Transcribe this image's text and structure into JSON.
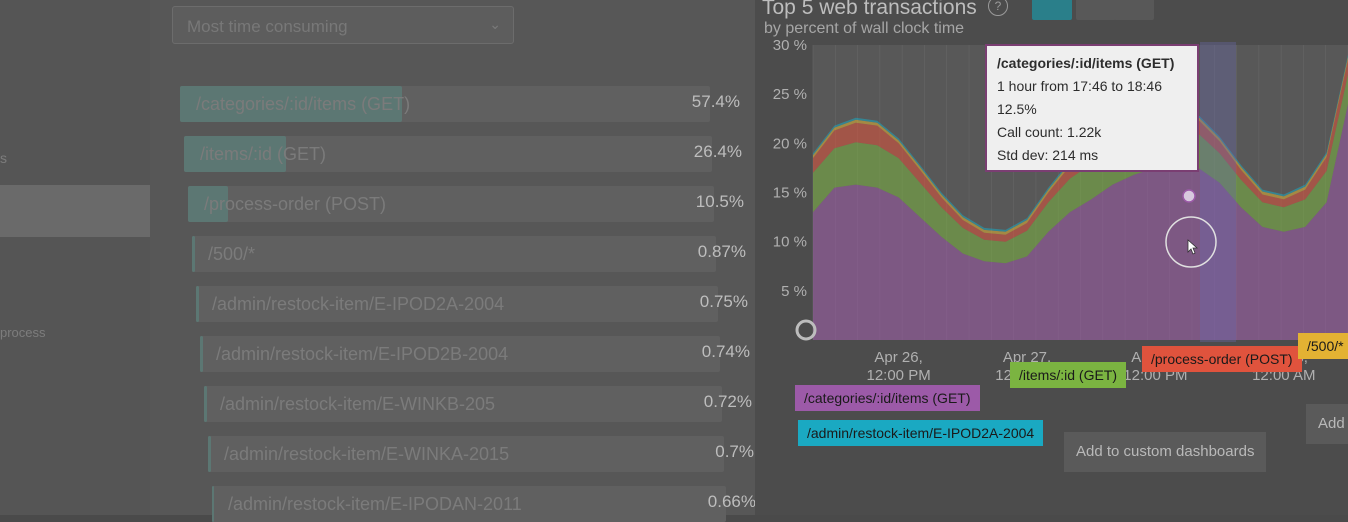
{
  "left_panel": {
    "sort_dropdown": {
      "value": "Most time consuming"
    },
    "transactions": [
      {
        "name": "/categories/:id/items (GET)",
        "percent": "57.4%",
        "fraction": 0.574
      },
      {
        "name": "/items/:id (GET)",
        "percent": "26.4%",
        "fraction": 0.264
      },
      {
        "name": "/process-order (POST)",
        "percent": "10.5%",
        "fraction": 0.105
      },
      {
        "name": "/500/*",
        "percent": "0.87%",
        "fraction": 0.0087
      },
      {
        "name": "/admin/restock-item/E-IPOD2A-2004",
        "percent": "0.75%",
        "fraction": 0.0075
      },
      {
        "name": "/admin/restock-item/E-IPOD2B-2004",
        "percent": "0.74%",
        "fraction": 0.0074
      },
      {
        "name": "/admin/restock-item/E-WINKB-205",
        "percent": "0.72%",
        "fraction": 0.0072
      },
      {
        "name": "/admin/restock-item/E-WINKA-2015",
        "percent": "0.7%",
        "fraction": 0.007
      },
      {
        "name": "/admin/restock-item/E-IPODAN-2011",
        "percent": "0.66%",
        "fraction": 0.0066
      }
    ]
  },
  "chart": {
    "title": "Top 5 web transactions",
    "subtitle": "by percent of wall clock time",
    "help_icon": "?",
    "tooltip": {
      "title": "/categories/:id/items (GET)",
      "time_range": "1 hour from 17:46 to 18:46",
      "value": "12.5%",
      "call_count": "Call count: 1.22k",
      "std_dev": "Std dev: 214 ms"
    },
    "legend": [
      {
        "name": "/categories/:id/items (GET)",
        "color": "#9c5aa8"
      },
      {
        "name": "/items/:id (GET)",
        "color": "#7bb441"
      },
      {
        "name": "/process-order (POST)",
        "color": "#e0533d"
      },
      {
        "name": "/500/*",
        "color": "#e3b233"
      },
      {
        "name": "/admin/restock-item/E-IPOD2A-2004",
        "color": "#1aa9c2"
      }
    ],
    "add_to_dashboards_label": "Add to custom dashboards",
    "add_to_label": "Add to"
  },
  "chart_data": {
    "type": "area",
    "title": "Top 5 web transactions",
    "subtitle": "by percent of wall clock time",
    "x_ticks": [
      "Apr 26,\n12:00 PM",
      "Apr 27,\n12:00 AM",
      "Apr 27,\n12:00 PM",
      "Apr 28,\n12:00 AM"
    ],
    "y_ticks": [
      "5 %",
      "10 %",
      "15 %",
      "20 %",
      "25 %",
      "30 %"
    ],
    "ylim": [
      0,
      30
    ],
    "x": [
      0,
      2,
      4,
      6,
      8,
      10,
      12,
      14,
      16,
      18,
      20,
      22,
      24,
      26,
      28,
      30,
      32,
      34,
      36,
      38,
      40,
      42,
      44,
      46,
      48,
      50
    ],
    "series": [
      {
        "name": "/categories/:id/items (GET)",
        "color": "#9c5aa8",
        "values": [
          13,
          15.5,
          15.8,
          15.5,
          14.5,
          12.5,
          10.5,
          8.8,
          8,
          7.8,
          8.5,
          11,
          13,
          14.3,
          15.8,
          16.8,
          17.5,
          18,
          17.5,
          16,
          13.5,
          11.5,
          11,
          11.5,
          14,
          24
        ]
      },
      {
        "name": "/items/:id (GET)",
        "color": "#7bb441",
        "values": [
          4,
          4,
          4.3,
          4.3,
          4,
          3.5,
          3,
          2.6,
          2.2,
          2.2,
          2.6,
          3,
          3.4,
          3.6,
          3.6,
          3.6,
          3.8,
          3.8,
          3.5,
          3,
          2.8,
          2.5,
          2.5,
          2.8,
          3.2,
          3
        ]
      },
      {
        "name": "/process-order (POST)",
        "color": "#e0533d",
        "values": [
          1.5,
          1.8,
          2,
          2,
          1.5,
          1.3,
          1,
          0.8,
          0.7,
          0.7,
          0.8,
          1,
          1.3,
          1.5,
          1.5,
          1.6,
          1.6,
          1.5,
          1.4,
          1.2,
          1,
          0.8,
          0.8,
          1,
          1.4,
          1.5
        ]
      },
      {
        "name": "/500/*",
        "color": "#e3b233",
        "values": [
          0.3,
          0.3,
          0.3,
          0.3,
          0.3,
          0.3,
          0.3,
          0.3,
          0.3,
          0.3,
          0.3,
          0.3,
          0.3,
          0.3,
          0.3,
          0.3,
          0.3,
          0.3,
          0.3,
          0.3,
          0.3,
          0.3,
          0.3,
          0.3,
          0.3,
          0.3
        ]
      },
      {
        "name": "/admin/restock-item/E-IPOD2A-2004",
        "color": "#1aa9c2",
        "values": [
          0.2,
          0.2,
          0.2,
          0.2,
          0.2,
          0.2,
          0.2,
          0.2,
          0.2,
          0.2,
          0.2,
          0.2,
          0.2,
          0.2,
          0.2,
          0.2,
          0.2,
          0.2,
          0.2,
          0.2,
          0.2,
          0.2,
          0.2,
          0.2,
          0.2,
          0.2
        ]
      }
    ],
    "grid": true
  }
}
